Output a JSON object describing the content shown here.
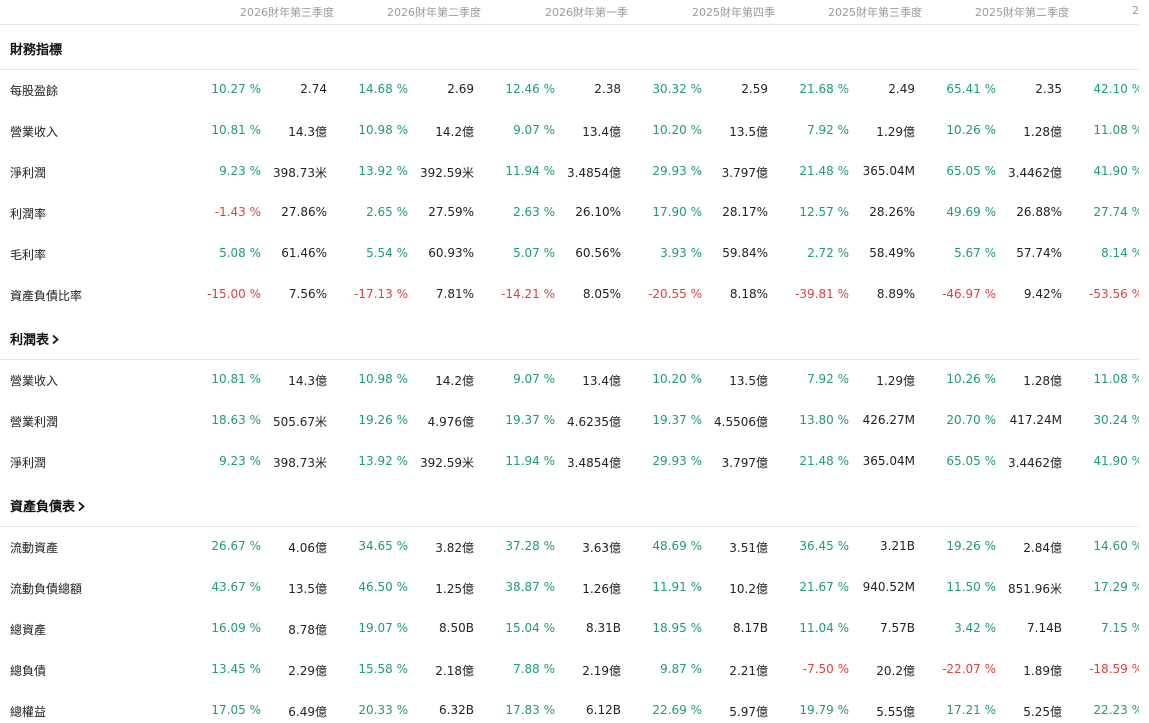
{
  "columns": [
    "2026財年第三季度",
    "2026財年第二季度",
    "2026財年第一季",
    "2025財年第四季",
    "2025財年第三季度",
    "2025財年第二季度",
    "2"
  ],
  "sections": [
    {
      "title": "財務指標",
      "rows": [
        {
          "label": "每股盈餘",
          "cells": [
            [
              "10.27 %",
              "2.74"
            ],
            [
              "14.68 %",
              "2.69"
            ],
            [
              "12.46 %",
              "2.38"
            ],
            [
              "30.32 %",
              "2.59"
            ],
            [
              "21.68 %",
              "2.49"
            ],
            [
              "65.41 %",
              "2.35"
            ],
            [
              "42.10 %",
              ""
            ]
          ]
        },
        {
          "label": "營業收入",
          "cells": [
            [
              "10.81 %",
              "14.3億"
            ],
            [
              "10.98 %",
              "14.2億"
            ],
            [
              "9.07 %",
              "13.4億"
            ],
            [
              "10.20 %",
              "13.5億"
            ],
            [
              "7.92 %",
              "1.29億"
            ],
            [
              "10.26 %",
              "1.28億"
            ],
            [
              "11.08 %",
              ""
            ]
          ]
        },
        {
          "label": "淨利潤",
          "cells": [
            [
              "9.23 %",
              "398.73米"
            ],
            [
              "13.92 %",
              "392.59米"
            ],
            [
              "11.94 %",
              "3.4854億"
            ],
            [
              "29.93 %",
              "3.797億"
            ],
            [
              "21.48 %",
              "365.04M"
            ],
            [
              "65.05 %",
              "3.4462億"
            ],
            [
              "41.90 %",
              ""
            ]
          ]
        },
        {
          "label": "利潤率",
          "cells": [
            [
              "-1.43 %",
              "27.86%"
            ],
            [
              "2.65 %",
              "27.59%"
            ],
            [
              "2.63 %",
              "26.10%"
            ],
            [
              "17.90 %",
              "28.17%"
            ],
            [
              "12.57 %",
              "28.26%"
            ],
            [
              "49.69 %",
              "26.88%"
            ],
            [
              "27.74 %",
              ""
            ]
          ]
        },
        {
          "label": "毛利率",
          "cells": [
            [
              "5.08 %",
              "61.46%"
            ],
            [
              "5.54 %",
              "60.93%"
            ],
            [
              "5.07 %",
              "60.56%"
            ],
            [
              "3.93 %",
              "59.84%"
            ],
            [
              "2.72 %",
              "58.49%"
            ],
            [
              "5.67 %",
              "57.74%"
            ],
            [
              "8.14 %",
              ""
            ]
          ]
        },
        {
          "label": "資產負債比率",
          "cells": [
            [
              "-15.00 %",
              "7.56%"
            ],
            [
              "-17.13 %",
              "7.81%"
            ],
            [
              "-14.21 %",
              "8.05%"
            ],
            [
              "-20.55 %",
              "8.18%"
            ],
            [
              "-39.81 %",
              "8.89%"
            ],
            [
              "-46.97 %",
              "9.42%"
            ],
            [
              "-53.56 %",
              ""
            ]
          ]
        }
      ]
    },
    {
      "title": "利潤表",
      "rows": [
        {
          "label": "營業收入",
          "cells": [
            [
              "10.81 %",
              "14.3億"
            ],
            [
              "10.98 %",
              "14.2億"
            ],
            [
              "9.07 %",
              "13.4億"
            ],
            [
              "10.20 %",
              "13.5億"
            ],
            [
              "7.92 %",
              "1.29億"
            ],
            [
              "10.26 %",
              "1.28億"
            ],
            [
              "11.08 %",
              ""
            ]
          ]
        },
        {
          "label": "營業利潤",
          "cells": [
            [
              "18.63 %",
              "505.67米"
            ],
            [
              "19.26 %",
              "4.976億"
            ],
            [
              "19.37 %",
              "4.6235億"
            ],
            [
              "19.37 %",
              "4.5506億"
            ],
            [
              "13.80 %",
              "426.27M"
            ],
            [
              "20.70 %",
              "417.24M"
            ],
            [
              "30.24 %",
              ""
            ]
          ]
        },
        {
          "label": "淨利潤",
          "cells": [
            [
              "9.23 %",
              "398.73米"
            ],
            [
              "13.92 %",
              "392.59米"
            ],
            [
              "11.94 %",
              "3.4854億"
            ],
            [
              "29.93 %",
              "3.797億"
            ],
            [
              "21.48 %",
              "365.04M"
            ],
            [
              "65.05 %",
              "3.4462億"
            ],
            [
              "41.90 %",
              ""
            ]
          ]
        }
      ]
    },
    {
      "title": "資產負債表",
      "rows": [
        {
          "label": "流動資產",
          "cells": [
            [
              "26.67 %",
              "4.06億"
            ],
            [
              "34.65 %",
              "3.82億"
            ],
            [
              "37.28 %",
              "3.63億"
            ],
            [
              "48.69 %",
              "3.51億"
            ],
            [
              "36.45 %",
              "3.21B"
            ],
            [
              "19.26 %",
              "2.84億"
            ],
            [
              "14.60 %",
              ""
            ]
          ]
        },
        {
          "label": "流動負債總額",
          "cells": [
            [
              "43.67 %",
              "13.5億"
            ],
            [
              "46.50 %",
              "1.25億"
            ],
            [
              "38.87 %",
              "1.26億"
            ],
            [
              "11.91 %",
              "10.2億"
            ],
            [
              "21.67 %",
              "940.52M"
            ],
            [
              "11.50 %",
              "851.96米"
            ],
            [
              "17.29 %",
              ""
            ]
          ]
        },
        {
          "label": "總資產",
          "cells": [
            [
              "16.09 %",
              "8.78億"
            ],
            [
              "19.07 %",
              "8.50B"
            ],
            [
              "15.04 %",
              "8.31B"
            ],
            [
              "18.95 %",
              "8.17B"
            ],
            [
              "11.04 %",
              "7.57B"
            ],
            [
              "3.42 %",
              "7.14B"
            ],
            [
              "7.15 %",
              ""
            ]
          ]
        },
        {
          "label": "總負債",
          "cells": [
            [
              "13.45 %",
              "2.29億"
            ],
            [
              "15.58 %",
              "2.18億"
            ],
            [
              "7.88 %",
              "2.19億"
            ],
            [
              "9.87 %",
              "2.21億"
            ],
            [
              "-7.50 %",
              "20.2億"
            ],
            [
              "-22.07 %",
              "1.89億"
            ],
            [
              "-18.59 %",
              ""
            ]
          ]
        },
        {
          "label": "總權益",
          "cells": [
            [
              "17.05 %",
              "6.49億"
            ],
            [
              "20.33 %",
              "6.32B"
            ],
            [
              "17.83 %",
              "6.12B"
            ],
            [
              "22.69 %",
              "5.97億"
            ],
            [
              "19.79 %",
              "5.55億"
            ],
            [
              "17.21 %",
              "5.25億"
            ],
            [
              "22.23 %",
              ""
            ]
          ]
        }
      ]
    }
  ],
  "colors": {
    "positive": "#1e9c74",
    "negative": "#e0403a",
    "text": "#222222",
    "header": "#9a9a9a"
  },
  "icons": {
    "section_link": "chevron-right-icon"
  }
}
